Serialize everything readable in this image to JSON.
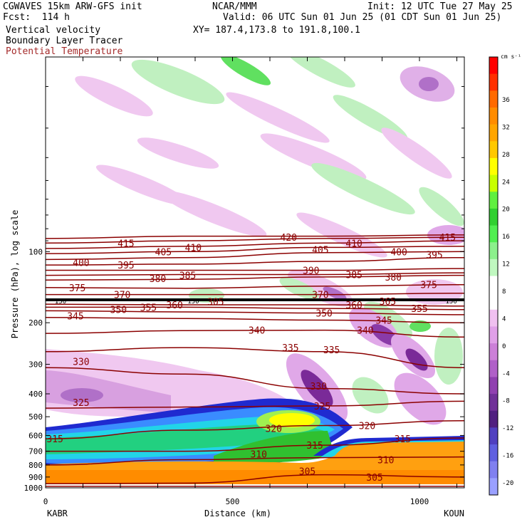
{
  "header": {
    "model_line": "CGWAVES 15km ARW-GFS init",
    "fcst_line": "Fcst:  114 h",
    "field_1": "Vertical velocity",
    "field_2": "Boundary Layer Tracer",
    "field_3": "Potential Temperature",
    "org": "NCAR/MMM",
    "valid_line": "Valid: 06 UTC Sun 01 Jun 25 (01 CDT Sun 01 Jun 25)",
    "xy_line": "XY= 187.4,173.8 to 191.8,100.1",
    "init_line": "Init: 12 UTC Tue 27 May 25"
  },
  "colors": {
    "theta_contour": "#8b0000",
    "header_maroon": "#a52a2a"
  },
  "chart_data": {
    "type": "heatmap",
    "title": "Vertical velocity / Boundary Layer Tracer / Potential Temperature",
    "xlabel": "Distance (km)",
    "ylabel": "Pressure (hPa), log scale",
    "x_range": [
      0,
      1120
    ],
    "x_ticks": [
      0,
      500,
      1000
    ],
    "x_endpoints": {
      "left": "KABR",
      "right": "KOUN"
    },
    "y_scale": "log",
    "y_range": [
      1000,
      15
    ],
    "y_ticks": [
      100,
      200,
      300,
      400,
      500,
      600,
      700,
      800,
      900,
      1000
    ],
    "colorbar": {
      "units": "cm s⁻¹",
      "tick_labels": [
        36,
        32,
        28,
        24,
        20,
        16,
        12,
        8,
        4,
        0,
        -4,
        -8,
        -12,
        -16,
        -20
      ],
      "colors": [
        "#ff0000",
        "#ff3000",
        "#ff6a00",
        "#ff8c00",
        "#ffa500",
        "#ffc800",
        "#ffff00",
        "#c8ff00",
        "#60f040",
        "#30d030",
        "#50ee50",
        "#8cf08c",
        "#c0f8c0",
        "#ffffff",
        "#ffffff",
        "#f0c0f0",
        "#e0a0e8",
        "#cc80d8",
        "#b060c8",
        "#9040b0",
        "#703098",
        "#502080",
        "#5040c0",
        "#6060e0",
        "#8080f0",
        "#9aa0ff"
      ]
    },
    "theta_labels": [
      {
        "value": 150,
        "x_km": 40,
        "p": 160
      },
      {
        "value": 150,
        "x_km": 395,
        "p": 160
      },
      {
        "value": 150,
        "x_km": 1085,
        "p": 160
      },
      {
        "value": 305,
        "x_km": 455,
        "p": 163
      },
      {
        "value": 305,
        "x_km": 700,
        "p": 850
      },
      {
        "value": 305,
        "x_km": 880,
        "p": 900
      },
      {
        "value": 310,
        "x_km": 570,
        "p": 720
      },
      {
        "value": 310,
        "x_km": 910,
        "p": 760
      },
      {
        "value": 315,
        "x_km": 25,
        "p": 620
      },
      {
        "value": 315,
        "x_km": 720,
        "p": 660
      },
      {
        "value": 315,
        "x_km": 955,
        "p": 620
      },
      {
        "value": 320,
        "x_km": 610,
        "p": 560
      },
      {
        "value": 320,
        "x_km": 860,
        "p": 545
      },
      {
        "value": 325,
        "x_km": 95,
        "p": 435
      },
      {
        "value": 325,
        "x_km": 740,
        "p": 450
      },
      {
        "value": 330,
        "x_km": 95,
        "p": 292
      },
      {
        "value": 330,
        "x_km": 730,
        "p": 370
      },
      {
        "value": 335,
        "x_km": 655,
        "p": 255
      },
      {
        "value": 335,
        "x_km": 765,
        "p": 260
      },
      {
        "value": 340,
        "x_km": 565,
        "p": 215
      },
      {
        "value": 340,
        "x_km": 855,
        "p": 215
      },
      {
        "value": 345,
        "x_km": 80,
        "p": 187
      },
      {
        "value": 345,
        "x_km": 905,
        "p": 195
      },
      {
        "value": 350,
        "x_km": 195,
        "p": 176
      },
      {
        "value": 350,
        "x_km": 745,
        "p": 182
      },
      {
        "value": 355,
        "x_km": 275,
        "p": 172
      },
      {
        "value": 355,
        "x_km": 1000,
        "p": 174
      },
      {
        "value": 360,
        "x_km": 345,
        "p": 168
      },
      {
        "value": 360,
        "x_km": 825,
        "p": 168
      },
      {
        "value": 365,
        "x_km": 915,
        "p": 162
      },
      {
        "value": 370,
        "x_km": 205,
        "p": 152
      },
      {
        "value": 370,
        "x_km": 735,
        "p": 152
      },
      {
        "value": 375,
        "x_km": 85,
        "p": 142
      },
      {
        "value": 375,
        "x_km": 1025,
        "p": 138
      },
      {
        "value": 380,
        "x_km": 300,
        "p": 130
      },
      {
        "value": 380,
        "x_km": 930,
        "p": 128
      },
      {
        "value": 385,
        "x_km": 380,
        "p": 126
      },
      {
        "value": 385,
        "x_km": 825,
        "p": 125
      },
      {
        "value": 390,
        "x_km": 710,
        "p": 120
      },
      {
        "value": 395,
        "x_km": 215,
        "p": 114
      },
      {
        "value": 395,
        "x_km": 1040,
        "p": 103
      },
      {
        "value": 400,
        "x_km": 95,
        "p": 111
      },
      {
        "value": 400,
        "x_km": 945,
        "p": 100
      },
      {
        "value": 405,
        "x_km": 315,
        "p": 100
      },
      {
        "value": 405,
        "x_km": 735,
        "p": 98
      },
      {
        "value": 410,
        "x_km": 395,
        "p": 96
      },
      {
        "value": 410,
        "x_km": 825,
        "p": 92
      },
      {
        "value": 415,
        "x_km": 215,
        "p": 92
      },
      {
        "value": 415,
        "x_km": 1075,
        "p": 87
      },
      {
        "value": 420,
        "x_km": 650,
        "p": 87
      }
    ]
  }
}
